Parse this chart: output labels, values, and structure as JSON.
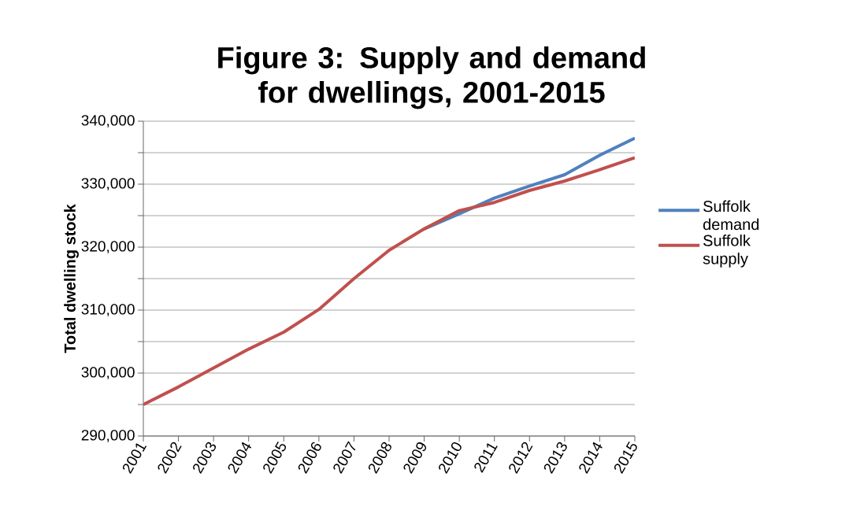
{
  "chart_data": {
    "type": "line",
    "title": "Figure 3: Supply and demand for dwellings, 2001-2015",
    "ylabel": "Total dwelling stock",
    "categories": [
      "2001",
      "2002",
      "2003",
      "2004",
      "2005",
      "2006",
      "2007",
      "2008",
      "2009",
      "2010",
      "2011",
      "2012",
      "2013",
      "2014",
      "2015"
    ],
    "series": [
      {
        "name": "Suffolk demand",
        "color": "#4f81bd",
        "values": [
          null,
          null,
          null,
          null,
          null,
          null,
          null,
          null,
          322900,
          325300,
          327800,
          329700,
          331500,
          334600,
          337300
        ]
      },
      {
        "name": "Suffolk supply",
        "color": "#c0504d",
        "values": [
          295000,
          297800,
          300800,
          303800,
          306500,
          310100,
          315000,
          319500,
          322900,
          325800,
          327100,
          329000,
          330500,
          332300,
          334200
        ]
      }
    ],
    "ylim": [
      290000,
      340000
    ],
    "yticks": [
      {
        "value": 290000,
        "label": "290,000"
      },
      {
        "value": 295000,
        "label": null
      },
      {
        "value": 300000,
        "label": "300,000"
      },
      {
        "value": 305000,
        "label": null
      },
      {
        "value": 310000,
        "label": "310,000"
      },
      {
        "value": 315000,
        "label": null
      },
      {
        "value": 320000,
        "label": "320,000"
      },
      {
        "value": 325000,
        "label": null
      },
      {
        "value": 330000,
        "label": "330,000"
      },
      {
        "value": 335000,
        "label": null
      },
      {
        "value": 340000,
        "label": "340,000"
      }
    ],
    "grid": "y",
    "legend": "right",
    "marker": "none",
    "line_style": "solid"
  }
}
